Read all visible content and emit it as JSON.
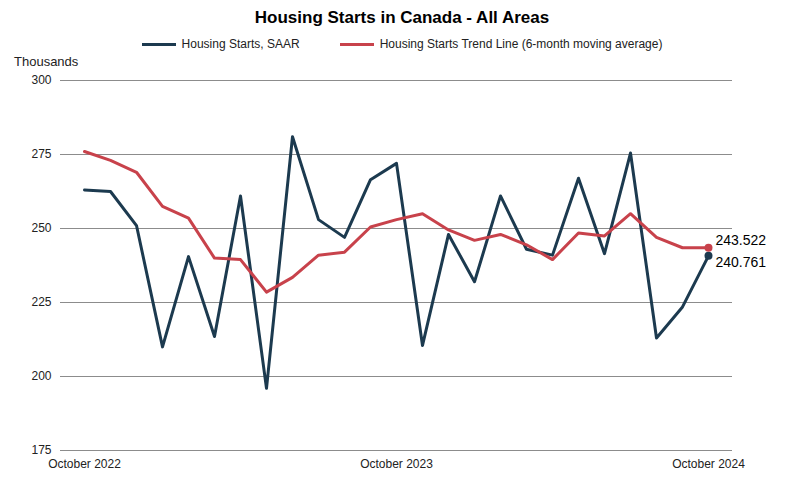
{
  "chart_data": {
    "type": "line",
    "title": "Housing Starts in Canada - All Areas",
    "y_label": "Thousands",
    "categories": [
      "October 2022",
      null,
      null,
      null,
      null,
      null,
      null,
      null,
      null,
      null,
      null,
      null,
      "October 2023",
      null,
      null,
      null,
      null,
      null,
      null,
      null,
      null,
      null,
      null,
      null,
      "October 2024"
    ],
    "series": [
      {
        "name": "Housing Starts, SAAR",
        "color": "#1c3a4f",
        "values": [
          263,
          262.5,
          251,
          210,
          240.5,
          213.5,
          261,
          196,
          281,
          253,
          247,
          266.5,
          272,
          210.5,
          248,
          232,
          261,
          243,
          241,
          267,
          241.5,
          275.5,
          213,
          223.5,
          240.761
        ],
        "value_labels": [
          null,
          null,
          null,
          null,
          null,
          null,
          null,
          null,
          null,
          null,
          null,
          null,
          null,
          null,
          null,
          null,
          null,
          null,
          null,
          null,
          null,
          null,
          null,
          null,
          "240.761"
        ]
      },
      {
        "name": "Housing Starts Trend Line (6-month moving average)",
        "color": "#c8424b",
        "values": [
          276,
          273,
          269,
          257.5,
          253.5,
          240,
          239.5,
          228.5,
          233.5,
          241,
          242,
          250.5,
          253,
          255,
          249.5,
          246,
          248,
          244.5,
          239.5,
          248.5,
          247.5,
          255,
          247,
          243.5,
          243.522
        ],
        "value_labels": [
          null,
          null,
          null,
          null,
          null,
          null,
          null,
          null,
          null,
          null,
          null,
          null,
          null,
          null,
          null,
          null,
          null,
          null,
          null,
          null,
          null,
          null,
          null,
          null,
          "243.522"
        ]
      }
    ],
    "ylim": [
      175,
      300
    ],
    "yticks": [
      175,
      200,
      225,
      250,
      275,
      300
    ],
    "grid": true,
    "legend": "top"
  }
}
